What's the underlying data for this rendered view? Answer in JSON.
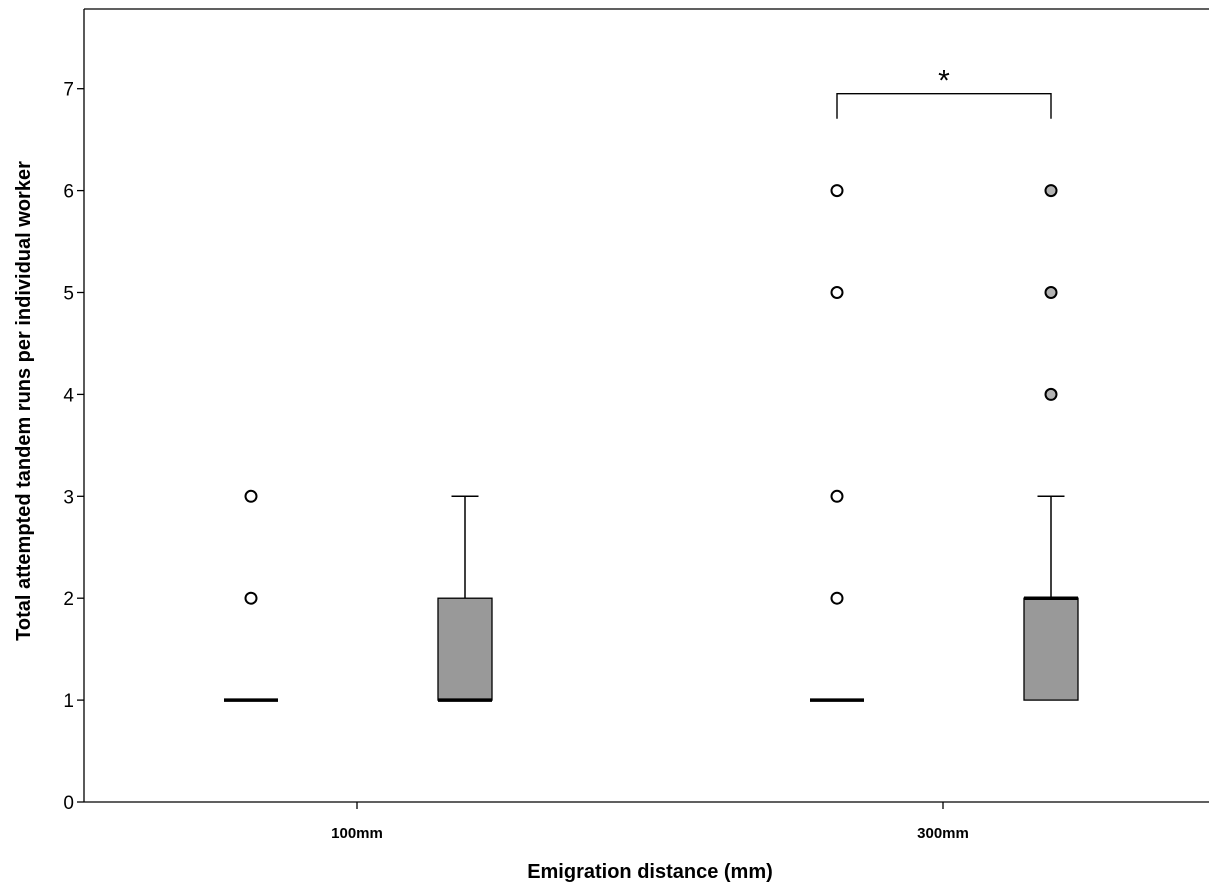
{
  "chart_data": {
    "type": "box",
    "xlabel": "Emigration distance (mm)",
    "ylabel": "Total attempted tandem runs per individual worker",
    "ylim": [
      0,
      7.8
    ],
    "yticks": [
      0,
      1,
      2,
      3,
      4,
      5,
      6,
      7
    ],
    "categories": [
      "100mm",
      "300mm"
    ],
    "groups": [
      {
        "category": "100mm",
        "boxes": [
          {
            "fill": "#ffffff",
            "whisker_low": 1,
            "q1": 1,
            "median": 1,
            "q3": 1,
            "whisker_high": 1,
            "outliers": [
              2,
              3
            ]
          },
          {
            "fill": "#999999",
            "whisker_low": 1,
            "q1": 1,
            "median": 1,
            "q3": 2,
            "whisker_high": 3,
            "outliers": []
          }
        ]
      },
      {
        "category": "300mm",
        "boxes": [
          {
            "fill": "#ffffff",
            "whisker_low": 1,
            "q1": 1,
            "median": 1,
            "q3": 1,
            "whisker_high": 1,
            "outliers": [
              2,
              3,
              5,
              6
            ]
          },
          {
            "fill": "#999999",
            "whisker_low": 1,
            "q1": 1,
            "median": 2,
            "q3": 2,
            "whisker_high": 3,
            "outliers": [
              4,
              5,
              6
            ]
          }
        ]
      }
    ],
    "annotations": [
      {
        "type": "significance-bracket",
        "category": "300mm",
        "between_boxes": [
          0,
          1
        ],
        "y": 7,
        "label": "*"
      }
    ],
    "colors": {
      "filled_box": "#999999",
      "open_box": "#ffffff",
      "line": "#000000"
    }
  }
}
